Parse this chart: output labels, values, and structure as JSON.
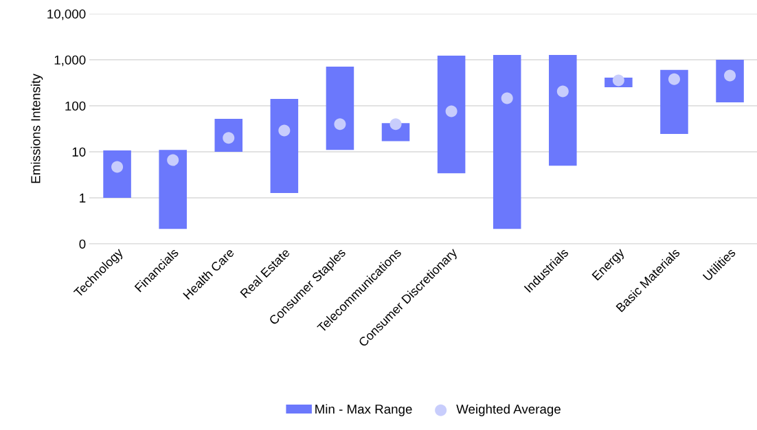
{
  "chart_data": {
    "type": "bar",
    "ylabel": "Emissions Intensity",
    "categories": [
      "Technology",
      "Financials",
      "Health Care",
      "Real Estate",
      "Consumer Staples",
      "Telecommunications",
      "Consumer Discretionary",
      null,
      "Industrials",
      "Energy",
      "Basic Materials",
      "Utilities"
    ],
    "series": [
      {
        "name": "Min - Max Range",
        "color": "#6b78fc",
        "base": [
          1.0,
          0.21,
          10,
          1.27,
          11,
          17,
          3.4,
          0.21,
          5.0,
          253,
          24.5,
          119
        ],
        "values": [
          9.7,
          10.79,
          42,
          139.73,
          699,
          25,
          1226.6,
          1269.79,
          1265,
          157,
          575.5,
          881
        ]
      },
      {
        "name": "Weighted Average",
        "color": "#c8cdfc",
        "type": "scatter",
        "values": [
          4.7,
          6.6,
          20,
          29,
          40,
          40,
          76,
          146,
          206,
          357,
          380,
          455
        ]
      }
    ],
    "log": "y",
    "ylim": [
      0.1,
      10000
    ],
    "yticks": [
      {
        "value": 0.1,
        "label": "0"
      },
      1,
      10,
      100,
      {
        "value": 1000,
        "label": "1,000"
      },
      {
        "value": 10000,
        "label": "10,000"
      }
    ],
    "grid": "y",
    "legend": "bottom",
    "marker": "circle"
  }
}
